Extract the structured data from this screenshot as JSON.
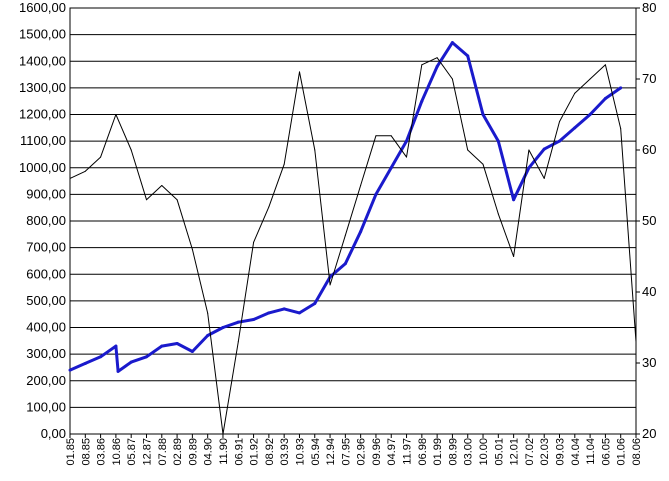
{
  "chart_data": {
    "type": "line",
    "title": "",
    "xlabel": "",
    "ylabel_left": "",
    "ylabel_right": "",
    "grid": "horizontal",
    "legend": "none",
    "left_axis": {
      "range": [
        0,
        1600
      ],
      "ticks": [
        "0,00",
        "100,00",
        "200,00",
        "300,00",
        "400,00",
        "500,00",
        "600,00",
        "700,00",
        "800,00",
        "900,00",
        "1000,00",
        "1100,00",
        "1200,00",
        "1300,00",
        "1400,00",
        "1500,00",
        "1600,00"
      ]
    },
    "right_axis": {
      "range": [
        20,
        80
      ],
      "ticks": [
        "20",
        "30",
        "40",
        "50",
        "60",
        "70",
        "80"
      ]
    },
    "x_ticks": [
      "01.85",
      "08.85",
      "03.86",
      "10.86",
      "05.87",
      "12.87",
      "07.88",
      "02.89",
      "09.89",
      "04.90",
      "11.90",
      "06.91",
      "01.92",
      "08.92",
      "03.93",
      "10.93",
      "05.94",
      "12.94",
      "07.95",
      "02.96",
      "09.96",
      "04.97",
      "11.97",
      "06.98",
      "01.99",
      "08.99",
      "03.00",
      "10.00",
      "05.01",
      "12.01",
      "07.02",
      "02.03",
      "09.03",
      "04.04",
      "11.04",
      "06.05",
      "01.06",
      "08.06"
    ],
    "series": [
      {
        "axis": "left",
        "color": "#1a1acc",
        "style": "thick",
        "points": [
          [
            "01.85",
            240
          ],
          [
            "08.85",
            265
          ],
          [
            "03.86",
            290
          ],
          [
            "10.86",
            330
          ],
          [
            "11.86",
            235
          ],
          [
            "05.87",
            270
          ],
          [
            "12.87",
            290
          ],
          [
            "07.88",
            330
          ],
          [
            "02.89",
            340
          ],
          [
            "09.89",
            310
          ],
          [
            "04.90",
            370
          ],
          [
            "11.90",
            400
          ],
          [
            "06.91",
            420
          ],
          [
            "01.92",
            430
          ],
          [
            "08.92",
            455
          ],
          [
            "03.93",
            470
          ],
          [
            "10.93",
            455
          ],
          [
            "05.94",
            490
          ],
          [
            "12.94",
            590
          ],
          [
            "07.95",
            640
          ],
          [
            "02.96",
            760
          ],
          [
            "09.96",
            900
          ],
          [
            "04.97",
            1000
          ],
          [
            "11.97",
            1100
          ],
          [
            "06.98",
            1250
          ],
          [
            "01.99",
            1380
          ],
          [
            "08.99",
            1470
          ],
          [
            "03.00",
            1420
          ],
          [
            "10.00",
            1200
          ],
          [
            "05.01",
            1100
          ],
          [
            "12.01",
            880
          ],
          [
            "07.02",
            1000
          ],
          [
            "02.03",
            1070
          ],
          [
            "09.03",
            1100
          ],
          [
            "04.04",
            1150
          ],
          [
            "11.04",
            1200
          ],
          [
            "06.05",
            1260
          ],
          [
            "01.06",
            1300
          ]
        ]
      },
      {
        "axis": "right",
        "color": "#000000",
        "style": "thin",
        "points": [
          [
            "01.85",
            56
          ],
          [
            "08.85",
            57
          ],
          [
            "03.86",
            59
          ],
          [
            "10.86",
            65
          ],
          [
            "05.87",
            60
          ],
          [
            "12.87",
            53
          ],
          [
            "07.88",
            55
          ],
          [
            "02.89",
            53
          ],
          [
            "09.89",
            46
          ],
          [
            "04.90",
            37
          ],
          [
            "11.90",
            20
          ],
          [
            "06.91",
            33
          ],
          [
            "01.92",
            47
          ],
          [
            "08.92",
            52
          ],
          [
            "03.93",
            58
          ],
          [
            "10.93",
            71
          ],
          [
            "05.94",
            60
          ],
          [
            "12.94",
            41
          ],
          [
            "07.95",
            48
          ],
          [
            "02.96",
            55
          ],
          [
            "09.96",
            62
          ],
          [
            "04.97",
            62
          ],
          [
            "11.97",
            59
          ],
          [
            "06.98",
            72
          ],
          [
            "01.99",
            73
          ],
          [
            "08.99",
            70
          ],
          [
            "03.00",
            60
          ],
          [
            "10.00",
            58
          ],
          [
            "05.01",
            51
          ],
          [
            "12.01",
            45
          ],
          [
            "07.02",
            60
          ],
          [
            "02.03",
            56
          ],
          [
            "09.03",
            64
          ],
          [
            "04.04",
            68
          ],
          [
            "11.04",
            70
          ],
          [
            "06.05",
            72
          ],
          [
            "01.06",
            63
          ],
          [
            "08.06",
            33
          ]
        ]
      }
    ]
  }
}
